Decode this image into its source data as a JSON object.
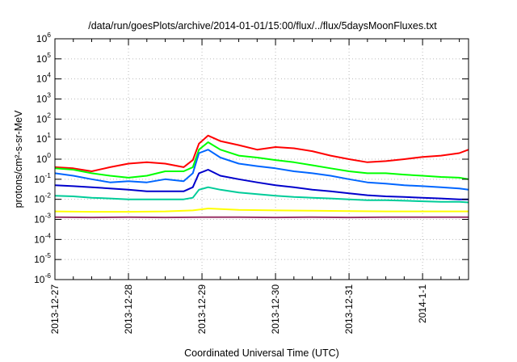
{
  "chart_data": {
    "type": "line",
    "title": "/data/run/goesPlots/archive/2014-01-01/15:00/flux/../flux/5daysMoonFluxes.txt",
    "xlabel": "Coordinated Universal Time (UTC)",
    "ylabel": "protons/cm²-s-sr-MeV",
    "yscale": "log",
    "ylim": [
      1e-06,
      1000000.0
    ],
    "xlim": [
      "2013-12-27T00:00",
      "2014-01-01T15:00"
    ],
    "x_ticks": [
      "2013-12-27",
      "2013-12-28",
      "2013-12-29",
      "2013-12-30",
      "2013-12-31",
      "2014-1-1"
    ],
    "y_ticks": [
      {
        "value": 1e-06,
        "base": "10",
        "exp": "-6"
      },
      {
        "value": 1e-05,
        "base": "10",
        "exp": "-5"
      },
      {
        "value": 0.0001,
        "base": "10",
        "exp": "-4"
      },
      {
        "value": 0.001,
        "base": "10",
        "exp": "-3"
      },
      {
        "value": 0.01,
        "base": "10",
        "exp": "-2"
      },
      {
        "value": 0.1,
        "base": "10",
        "exp": "-1"
      },
      {
        "value": 1,
        "base": "10",
        "exp": "0"
      },
      {
        "value": 10,
        "base": "10",
        "exp": "1"
      },
      {
        "value": 100,
        "base": "10",
        "exp": "2"
      },
      {
        "value": 1000,
        "base": "10",
        "exp": "3"
      },
      {
        "value": 10000,
        "base": "10",
        "exp": "4"
      },
      {
        "value": 100000,
        "base": "10",
        "exp": "5"
      },
      {
        "value": 1000000,
        "base": "10",
        "exp": "6"
      }
    ],
    "grid": true,
    "legend": "none",
    "series": [
      {
        "color": "#ff0000",
        "x": [
          "2013-12-27T00:00",
          "2013-12-27T06:00",
          "2013-12-27T12:00",
          "2013-12-27T18:00",
          "2013-12-28T00:00",
          "2013-12-28T06:00",
          "2013-12-28T12:00",
          "2013-12-28T18:00",
          "2013-12-28T21:00",
          "2013-12-28T23:00",
          "2013-12-29T02:00",
          "2013-12-29T06:00",
          "2013-12-29T12:00",
          "2013-12-29T18:00",
          "2013-12-30T00:00",
          "2013-12-30T06:00",
          "2013-12-30T12:00",
          "2013-12-30T18:00",
          "2013-12-31T00:00",
          "2013-12-31T06:00",
          "2013-12-31T12:00",
          "2013-12-31T18:00",
          "2014-01-01T00:00",
          "2014-01-01T06:00",
          "2014-01-01T12:00",
          "2014-01-01T15:00"
        ],
        "y": [
          0.4,
          0.35,
          0.25,
          0.4,
          0.6,
          0.7,
          0.6,
          0.4,
          0.9,
          6,
          15,
          8,
          5,
          3,
          4,
          3.5,
          2.5,
          1.5,
          1.0,
          0.7,
          0.8,
          1.0,
          1.3,
          1.5,
          2.0,
          3.0
        ]
      },
      {
        "color": "#00ff00",
        "x": [
          "2013-12-27T00:00",
          "2013-12-27T06:00",
          "2013-12-27T12:00",
          "2013-12-27T18:00",
          "2013-12-28T00:00",
          "2013-12-28T06:00",
          "2013-12-28T12:00",
          "2013-12-28T18:00",
          "2013-12-28T21:00",
          "2013-12-28T23:00",
          "2013-12-29T02:00",
          "2013-12-29T06:00",
          "2013-12-29T12:00",
          "2013-12-29T18:00",
          "2013-12-30T00:00",
          "2013-12-30T06:00",
          "2013-12-30T12:00",
          "2013-12-30T18:00",
          "2013-12-31T00:00",
          "2013-12-31T06:00",
          "2013-12-31T12:00",
          "2013-12-31T18:00",
          "2014-01-01T00:00",
          "2014-01-01T06:00",
          "2014-01-01T12:00",
          "2014-01-01T15:00"
        ],
        "y": [
          0.35,
          0.3,
          0.2,
          0.15,
          0.12,
          0.15,
          0.25,
          0.25,
          0.4,
          3.0,
          7.0,
          3.0,
          1.5,
          1.2,
          0.9,
          0.7,
          0.5,
          0.35,
          0.25,
          0.2,
          0.2,
          0.17,
          0.15,
          0.13,
          0.12,
          0.1
        ]
      },
      {
        "color": "#0066ff",
        "x": [
          "2013-12-27T00:00",
          "2013-12-27T06:00",
          "2013-12-27T12:00",
          "2013-12-27T18:00",
          "2013-12-28T00:00",
          "2013-12-28T06:00",
          "2013-12-28T12:00",
          "2013-12-28T18:00",
          "2013-12-28T21:00",
          "2013-12-28T23:00",
          "2013-12-29T02:00",
          "2013-12-29T06:00",
          "2013-12-29T12:00",
          "2013-12-29T18:00",
          "2013-12-30T00:00",
          "2013-12-30T06:00",
          "2013-12-30T12:00",
          "2013-12-30T18:00",
          "2013-12-31T00:00",
          "2013-12-31T06:00",
          "2013-12-31T12:00",
          "2013-12-31T18:00",
          "2014-01-01T00:00",
          "2014-01-01T06:00",
          "2014-01-01T12:00",
          "2014-01-01T15:00"
        ],
        "y": [
          0.2,
          0.15,
          0.1,
          0.07,
          0.08,
          0.07,
          0.1,
          0.08,
          0.2,
          2.0,
          3.0,
          1.2,
          0.6,
          0.45,
          0.35,
          0.25,
          0.2,
          0.15,
          0.1,
          0.07,
          0.06,
          0.05,
          0.045,
          0.04,
          0.035,
          0.03
        ]
      },
      {
        "color": "#0000cc",
        "x": [
          "2013-12-27T00:00",
          "2013-12-27T06:00",
          "2013-12-27T12:00",
          "2013-12-27T18:00",
          "2013-12-28T00:00",
          "2013-12-28T06:00",
          "2013-12-28T12:00",
          "2013-12-28T18:00",
          "2013-12-28T21:00",
          "2013-12-28T23:00",
          "2013-12-29T02:00",
          "2013-12-29T06:00",
          "2013-12-29T12:00",
          "2013-12-29T18:00",
          "2013-12-30T00:00",
          "2013-12-30T06:00",
          "2013-12-30T12:00",
          "2013-12-30T18:00",
          "2013-12-31T00:00",
          "2013-12-31T06:00",
          "2013-12-31T12:00",
          "2013-12-31T18:00",
          "2014-01-01T00:00",
          "2014-01-01T06:00",
          "2014-01-01T12:00",
          "2014-01-01T15:00"
        ],
        "y": [
          0.05,
          0.045,
          0.04,
          0.035,
          0.03,
          0.025,
          0.025,
          0.025,
          0.04,
          0.2,
          0.3,
          0.15,
          0.1,
          0.07,
          0.05,
          0.04,
          0.03,
          0.025,
          0.02,
          0.016,
          0.014,
          0.013,
          0.012,
          0.011,
          0.01,
          0.01
        ]
      },
      {
        "color": "#00cc99",
        "x": [
          "2013-12-27T00:00",
          "2013-12-27T06:00",
          "2013-12-27T12:00",
          "2013-12-27T18:00",
          "2013-12-28T00:00",
          "2013-12-28T06:00",
          "2013-12-28T12:00",
          "2013-12-28T18:00",
          "2013-12-28T21:00",
          "2013-12-28T23:00",
          "2013-12-29T02:00",
          "2013-12-29T06:00",
          "2013-12-29T12:00",
          "2013-12-29T18:00",
          "2013-12-30T00:00",
          "2013-12-30T06:00",
          "2013-12-30T12:00",
          "2013-12-30T18:00",
          "2013-12-31T00:00",
          "2013-12-31T06:00",
          "2013-12-31T12:00",
          "2013-12-31T18:00",
          "2014-01-01T00:00",
          "2014-01-01T06:00",
          "2014-01-01T12:00",
          "2014-01-01T15:00"
        ],
        "y": [
          0.015,
          0.014,
          0.012,
          0.011,
          0.01,
          0.01,
          0.01,
          0.01,
          0.012,
          0.03,
          0.04,
          0.03,
          0.022,
          0.018,
          0.015,
          0.013,
          0.012,
          0.011,
          0.01,
          0.009,
          0.009,
          0.0085,
          0.008,
          0.0075,
          0.0075,
          0.007
        ]
      },
      {
        "color": "#ffff00",
        "x": [
          "2013-12-27T00:00",
          "2013-12-27T12:00",
          "2013-12-28T00:00",
          "2013-12-28T12:00",
          "2013-12-28T21:00",
          "2013-12-29T02:00",
          "2013-12-29T12:00",
          "2013-12-30T00:00",
          "2013-12-30T12:00",
          "2013-12-31T00:00",
          "2013-12-31T12:00",
          "2014-01-01T00:00",
          "2014-01-01T15:00"
        ],
        "y": [
          0.0025,
          0.0024,
          0.0024,
          0.0025,
          0.0028,
          0.0035,
          0.003,
          0.0028,
          0.0027,
          0.0026,
          0.0025,
          0.0025,
          0.0025
        ]
      },
      {
        "color": "#993366",
        "x": [
          "2013-12-27T00:00",
          "2013-12-27T12:00",
          "2013-12-28T00:00",
          "2013-12-28T12:00",
          "2013-12-29T00:00",
          "2013-12-29T12:00",
          "2013-12-30T00:00",
          "2013-12-30T12:00",
          "2013-12-31T00:00",
          "2013-12-31T12:00",
          "2014-01-01T00:00",
          "2014-01-01T15:00"
        ],
        "y": [
          0.0013,
          0.00125,
          0.0013,
          0.00125,
          0.0013,
          0.00128,
          0.00125,
          0.0013,
          0.00125,
          0.0013,
          0.00128,
          0.0013
        ]
      }
    ]
  }
}
